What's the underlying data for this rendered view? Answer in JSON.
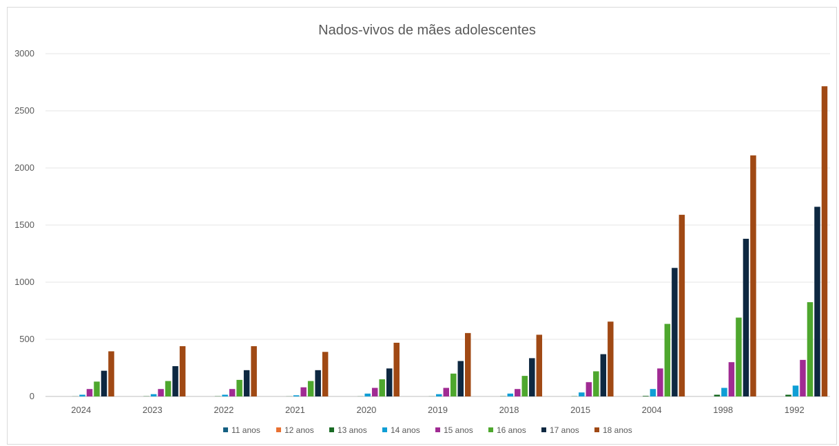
{
  "chart_data": {
    "type": "bar",
    "title": "Nados-vivos de mães adolescentes",
    "xlabel": "",
    "ylabel": "",
    "ylim": [
      0,
      3000
    ],
    "yticks": [
      0,
      500,
      1000,
      1500,
      2000,
      2500,
      3000
    ],
    "grid": true,
    "legend_position": "bottom",
    "categories": [
      "2024",
      "2023",
      "2022",
      "2021",
      "2020",
      "2019",
      "2018",
      "2015",
      "2004",
      "1998",
      "1992"
    ],
    "series": [
      {
        "name": "11 anos",
        "color": "#156082",
        "values": [
          0,
          0,
          0,
          0,
          0,
          0,
          0,
          0,
          0,
          0,
          0
        ]
      },
      {
        "name": "12 anos",
        "color": "#E97132",
        "values": [
          0,
          0,
          0,
          0,
          0,
          0,
          0,
          0,
          0,
          0,
          0
        ]
      },
      {
        "name": "13 anos",
        "color": "#196B24",
        "values": [
          1,
          2,
          2,
          1,
          1,
          1,
          2,
          2,
          5,
          15,
          15
        ]
      },
      {
        "name": "14 anos",
        "color": "#0F9ED5",
        "values": [
          15,
          20,
          15,
          10,
          25,
          20,
          25,
          35,
          65,
          75,
          95
        ]
      },
      {
        "name": "15 anos",
        "color": "#A02B93",
        "values": [
          65,
          65,
          65,
          80,
          75,
          75,
          65,
          125,
          245,
          300,
          320
        ]
      },
      {
        "name": "16 anos",
        "color": "#4EA72E",
        "values": [
          130,
          135,
          145,
          135,
          150,
          200,
          180,
          220,
          635,
          690,
          825
        ]
      },
      {
        "name": "17 anos",
        "color": "#0E2841",
        "values": [
          225,
          265,
          230,
          230,
          245,
          310,
          335,
          370,
          1125,
          1380,
          1660
        ]
      },
      {
        "name": "18 anos",
        "color": "#A04914",
        "values": [
          395,
          440,
          440,
          390,
          470,
          555,
          540,
          655,
          1590,
          2110,
          2715
        ]
      }
    ]
  }
}
